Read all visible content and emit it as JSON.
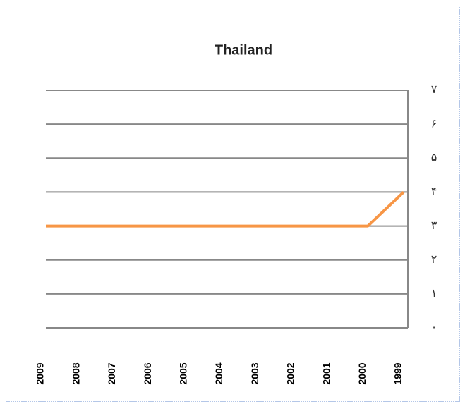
{
  "chart_data": {
    "type": "line",
    "title": "Thailand",
    "categories": [
      "2009",
      "2008",
      "2007",
      "2006",
      "2005",
      "2004",
      "2003",
      "2002",
      "2001",
      "2000",
      "1999"
    ],
    "series": [
      {
        "name": "Thailand",
        "color": "#f79646",
        "values": [
          3,
          3,
          3,
          3,
          3,
          3,
          3,
          3,
          3,
          3,
          4
        ]
      }
    ],
    "ylim": [
      0,
      7
    ],
    "yticks": [
      {
        "value": 0,
        "label": "۰"
      },
      {
        "value": 1,
        "label": "۱"
      },
      {
        "value": 2,
        "label": "۲"
      },
      {
        "value": 3,
        "label": "۳"
      },
      {
        "value": 4,
        "label": "۴"
      },
      {
        "value": 5,
        "label": "۵"
      },
      {
        "value": 6,
        "label": "۶"
      },
      {
        "value": 7,
        "label": "۷"
      }
    ],
    "grid": true,
    "y_axis_side": "right"
  }
}
